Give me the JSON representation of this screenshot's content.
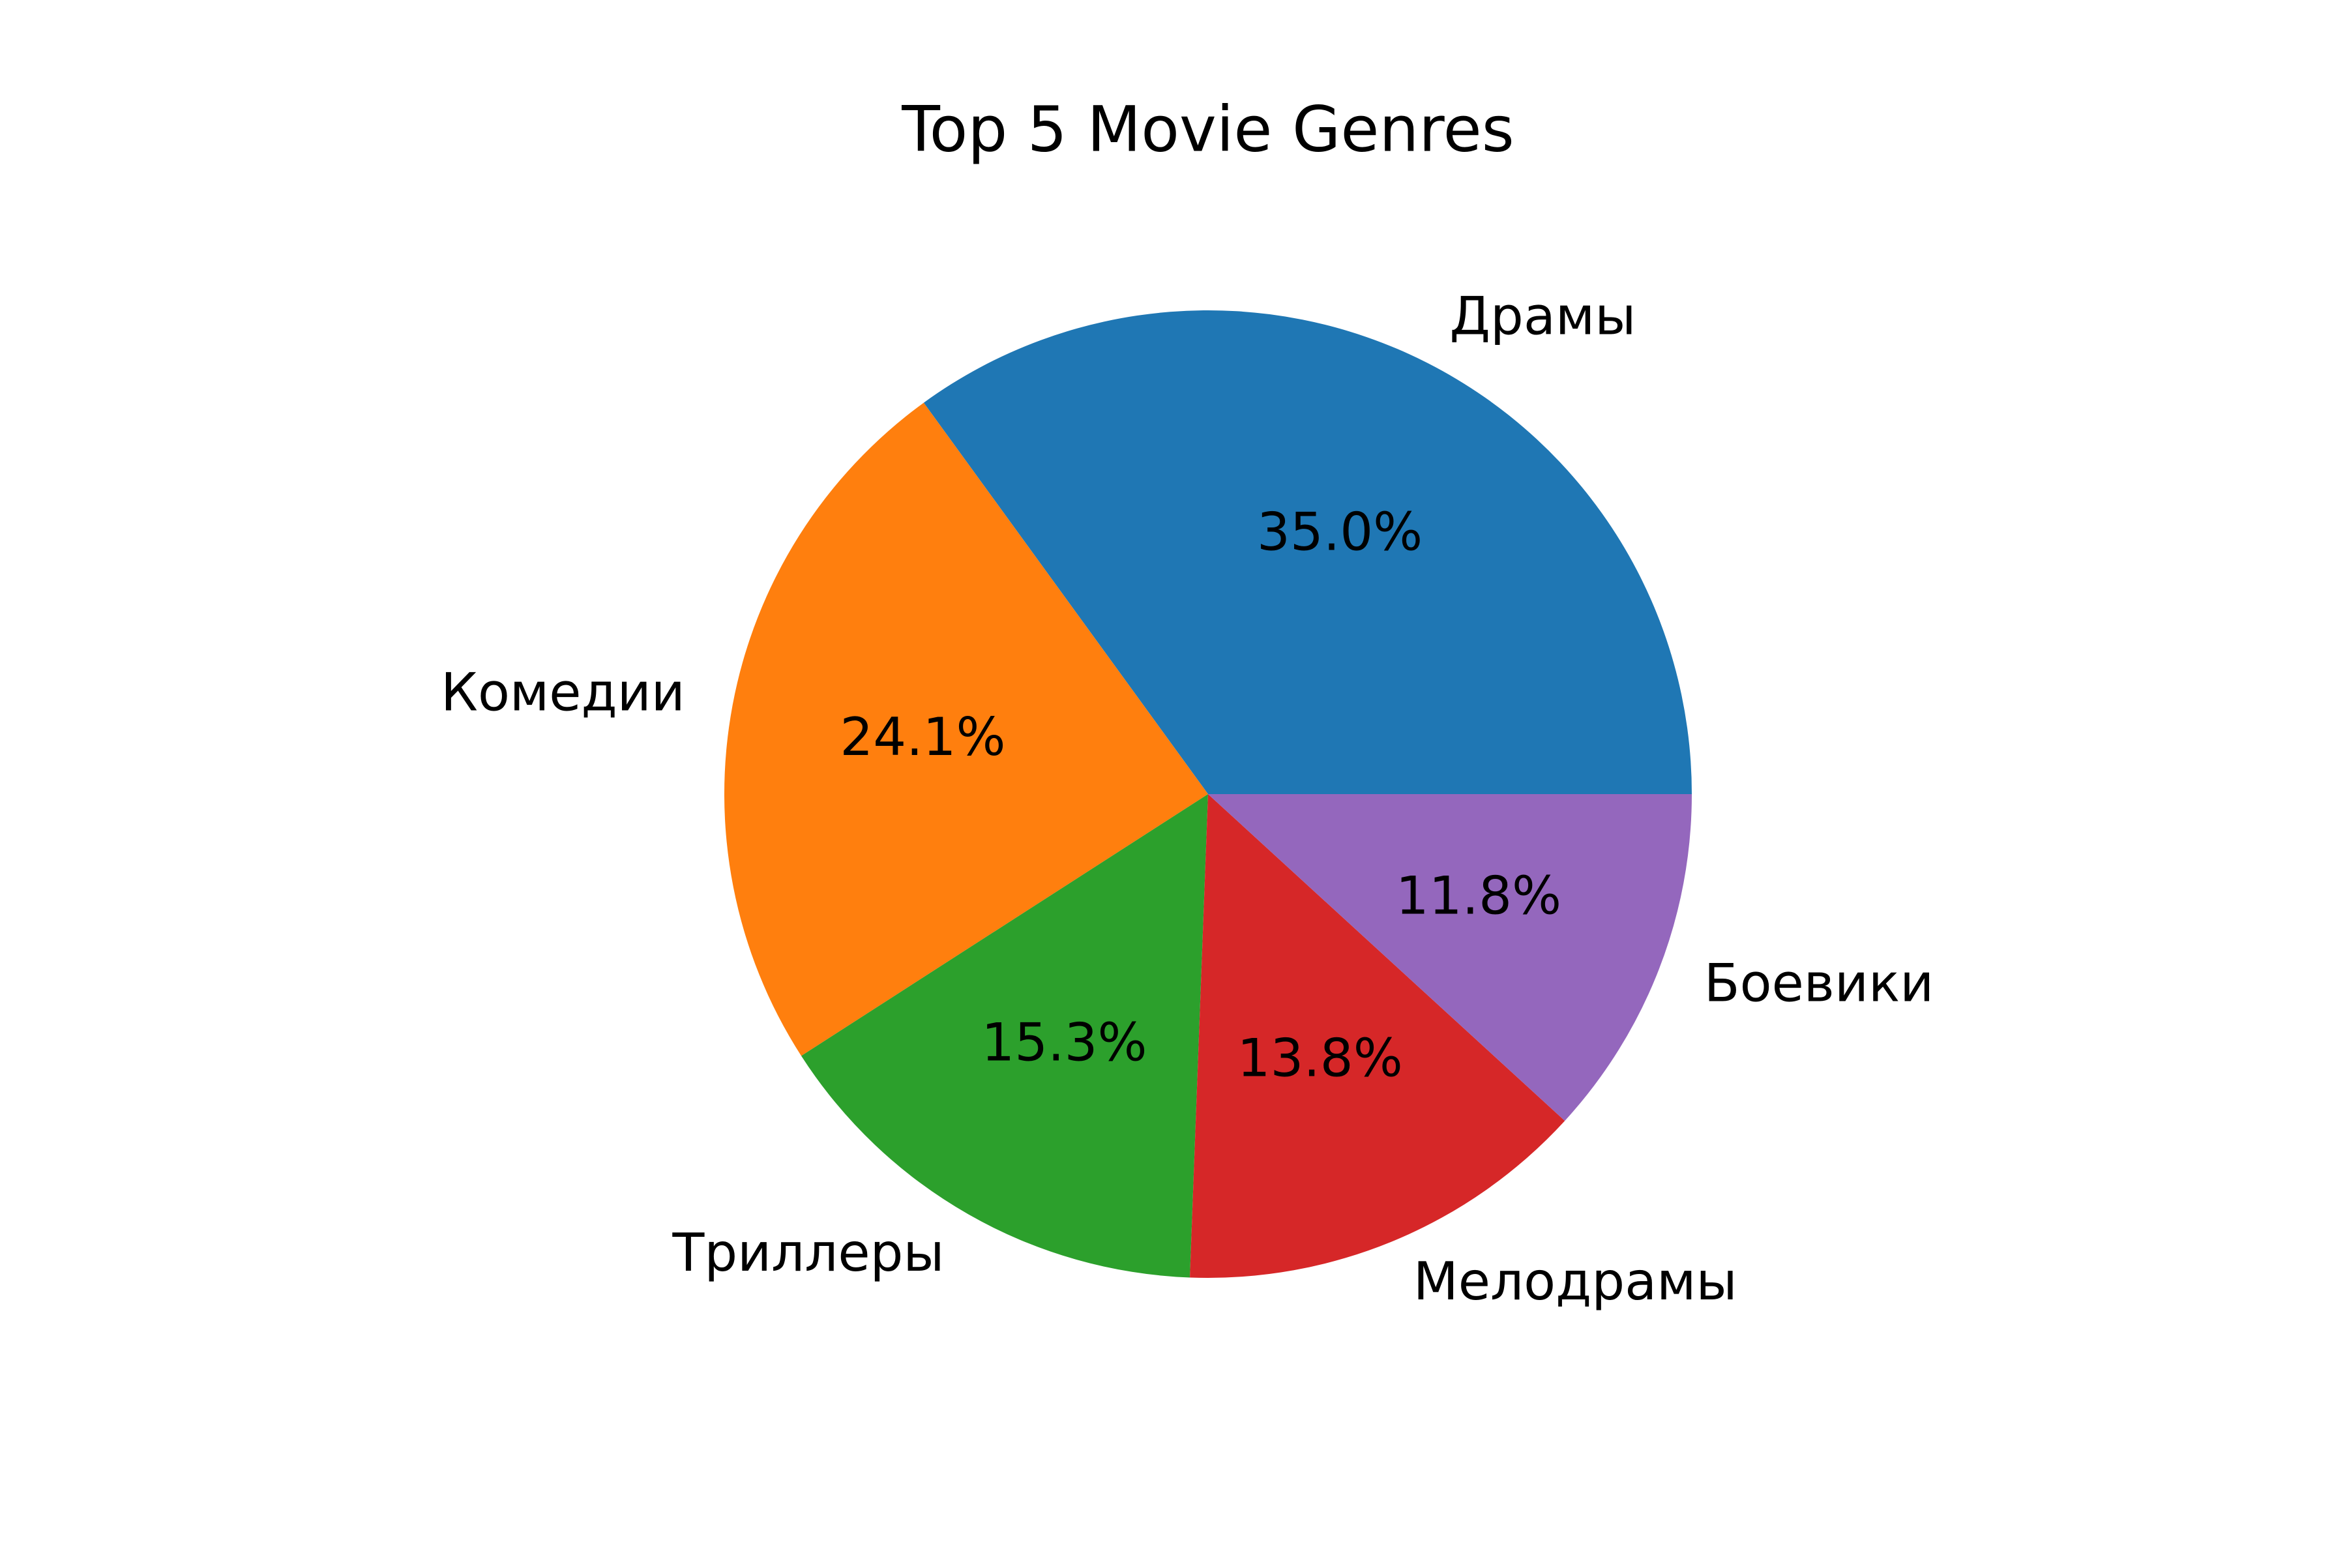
{
  "chart_data": {
    "type": "pie",
    "title": "Top 5 Movie Genres",
    "categories": [
      "Драмы",
      "Комедии",
      "Триллеры",
      "Мелодрамы",
      "Боевики"
    ],
    "values": [
      35.0,
      24.1,
      15.3,
      13.8,
      11.8
    ],
    "value_labels": [
      "35.0%",
      "24.1%",
      "15.3%",
      "13.8%",
      "11.8%"
    ],
    "colors": [
      "#1f77b4",
      "#ff7f0e",
      "#2ca02c",
      "#d62728",
      "#9467bd"
    ],
    "start_angle_deg": 0,
    "direction": "counterclockwise",
    "legend": "none"
  }
}
